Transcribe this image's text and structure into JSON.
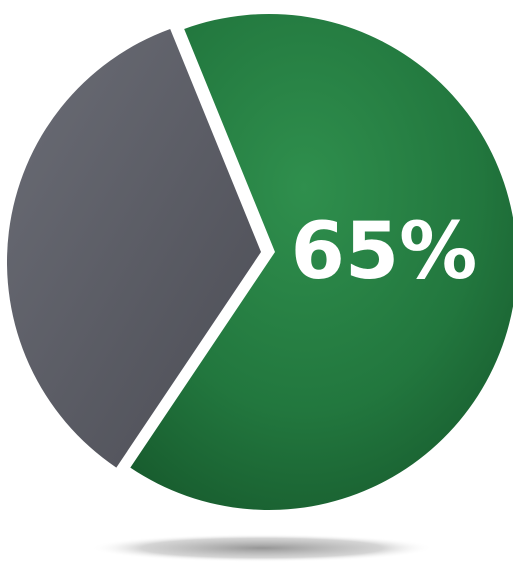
{
  "chart_data": {
    "type": "pie",
    "title": "",
    "slices": [
      {
        "value": 65,
        "color": "#1f7a3e"
      },
      {
        "value": 35,
        "color": "#5f6068"
      }
    ],
    "data_label": "65%"
  }
}
